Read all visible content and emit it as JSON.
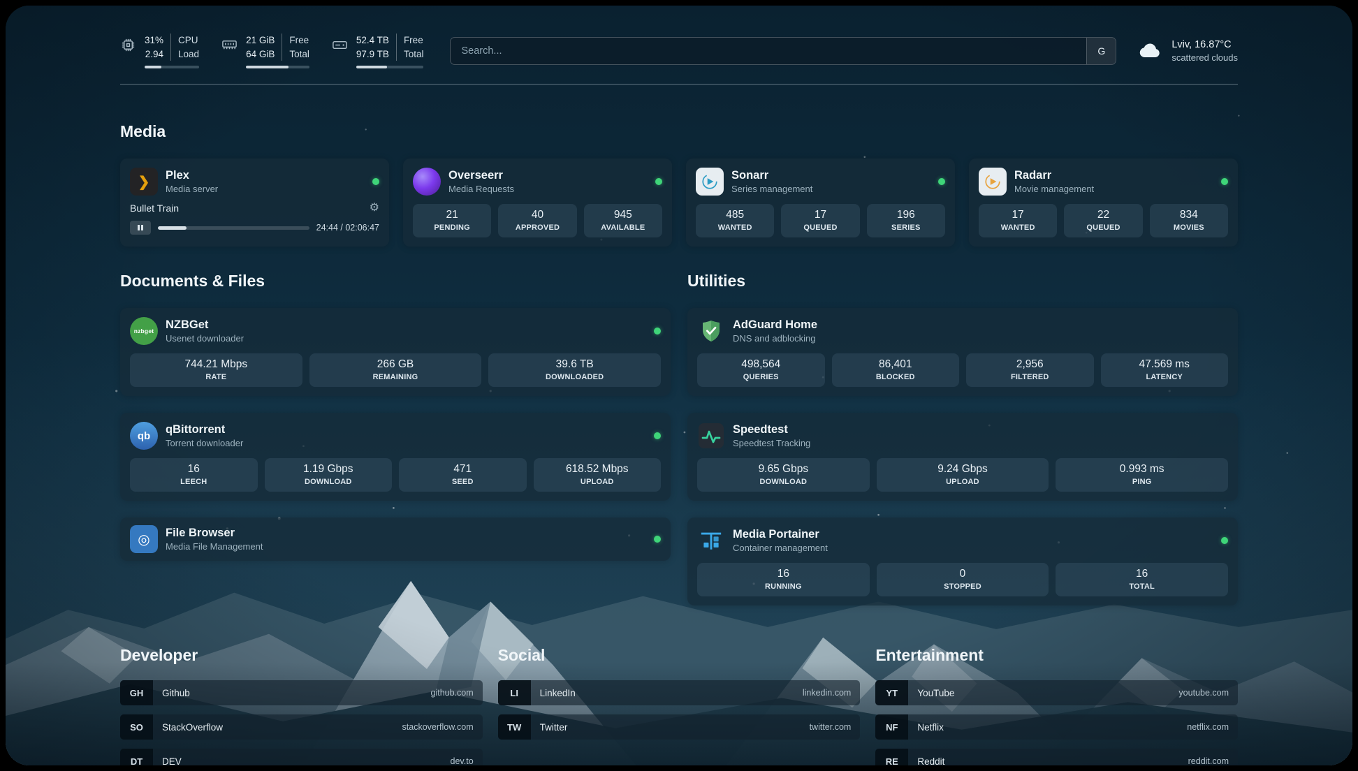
{
  "colors": {
    "status_online": "#3fd579",
    "accent_plex": "#e5a00d",
    "background_teal": "#0f2c3d"
  },
  "icons": {
    "plex_glyph": "❯",
    "gear": "⚙",
    "filebrowser_glyph": "◎",
    "qbittorrent_text": "qb",
    "nzbget_text": "nzbget"
  },
  "header": {
    "cpu": {
      "values": [
        "31%",
        "2.94"
      ],
      "labels": [
        "CPU",
        "Load"
      ],
      "fill": 31
    },
    "memory": {
      "values": [
        "21 GiB",
        "64 GiB"
      ],
      "labels": [
        "Free",
        "Total"
      ],
      "fill": 67
    },
    "disk": {
      "values": [
        "52.4 TB",
        "97.9 TB"
      ],
      "labels": [
        "Free",
        "Total"
      ],
      "fill": 46
    },
    "search": {
      "placeholder": "Search...",
      "button_label": "G"
    },
    "weather": {
      "location": "Lviv, 16.87°C",
      "condition": "scattered clouds"
    }
  },
  "media": {
    "title": "Media",
    "plex": {
      "name": "Plex",
      "subtitle": "Media server",
      "now_playing": "Bullet Train",
      "time": "24:44 / 02:06:47",
      "progress": 19
    },
    "overseerr": {
      "name": "Overseerr",
      "subtitle": "Media Requests",
      "stats": [
        {
          "value": "21",
          "label": "PENDING"
        },
        {
          "value": "40",
          "label": "APPROVED"
        },
        {
          "value": "945",
          "label": "AVAILABLE"
        }
      ]
    },
    "sonarr": {
      "name": "Sonarr",
      "subtitle": "Series management",
      "stats": [
        {
          "value": "485",
          "label": "WANTED"
        },
        {
          "value": "17",
          "label": "QUEUED"
        },
        {
          "value": "196",
          "label": "SERIES"
        }
      ]
    },
    "radarr": {
      "name": "Radarr",
      "subtitle": "Movie management",
      "stats": [
        {
          "value": "17",
          "label": "WANTED"
        },
        {
          "value": "22",
          "label": "QUEUED"
        },
        {
          "value": "834",
          "label": "MOVIES"
        }
      ]
    }
  },
  "documents": {
    "title": "Documents & Files",
    "nzbget": {
      "name": "NZBGet",
      "subtitle": "Usenet downloader",
      "stats": [
        {
          "value": "744.21 Mbps",
          "label": "RATE"
        },
        {
          "value": "266 GB",
          "label": "REMAINING"
        },
        {
          "value": "39.6 TB",
          "label": "DOWNLOADED"
        }
      ]
    },
    "qbittorrent": {
      "name": "qBittorrent",
      "subtitle": "Torrent downloader",
      "stats": [
        {
          "value": "16",
          "label": "LEECH"
        },
        {
          "value": "1.19 Gbps",
          "label": "DOWNLOAD"
        },
        {
          "value": "471",
          "label": "SEED"
        },
        {
          "value": "618.52 Mbps",
          "label": "UPLOAD"
        }
      ]
    },
    "filebrowser": {
      "name": "File Browser",
      "subtitle": "Media File Management"
    }
  },
  "utilities": {
    "title": "Utilities",
    "adguard": {
      "name": "AdGuard Home",
      "subtitle": "DNS and adblocking",
      "stats": [
        {
          "value": "498,564",
          "label": "QUERIES"
        },
        {
          "value": "86,401",
          "label": "BLOCKED"
        },
        {
          "value": "2,956",
          "label": "FILTERED"
        },
        {
          "value": "47.569 ms",
          "label": "LATENCY"
        }
      ]
    },
    "speedtest": {
      "name": "Speedtest",
      "subtitle": "Speedtest Tracking",
      "stats": [
        {
          "value": "9.65 Gbps",
          "label": "DOWNLOAD"
        },
        {
          "value": "9.24 Gbps",
          "label": "UPLOAD"
        },
        {
          "value": "0.993 ms",
          "label": "PING"
        }
      ]
    },
    "portainer": {
      "name": "Media Portainer",
      "subtitle": "Container management",
      "stats": [
        {
          "value": "16",
          "label": "RUNNING"
        },
        {
          "value": "0",
          "label": "STOPPED"
        },
        {
          "value": "16",
          "label": "TOTAL"
        }
      ]
    }
  },
  "bookmarks": {
    "developer": {
      "title": "Developer",
      "items": [
        {
          "abbr": "GH",
          "name": "Github",
          "url": "github.com"
        },
        {
          "abbr": "SO",
          "name": "StackOverflow",
          "url": "stackoverflow.com"
        },
        {
          "abbr": "DT",
          "name": "DEV",
          "url": "dev.to"
        }
      ]
    },
    "social": {
      "title": "Social",
      "items": [
        {
          "abbr": "LI",
          "name": "LinkedIn",
          "url": "linkedin.com"
        },
        {
          "abbr": "TW",
          "name": "Twitter",
          "url": "twitter.com"
        }
      ]
    },
    "entertainment": {
      "title": "Entertainment",
      "items": [
        {
          "abbr": "YT",
          "name": "YouTube",
          "url": "youtube.com"
        },
        {
          "abbr": "NF",
          "name": "Netflix",
          "url": "netflix.com"
        },
        {
          "abbr": "RE",
          "name": "Reddit",
          "url": "reddit.com"
        }
      ]
    }
  }
}
